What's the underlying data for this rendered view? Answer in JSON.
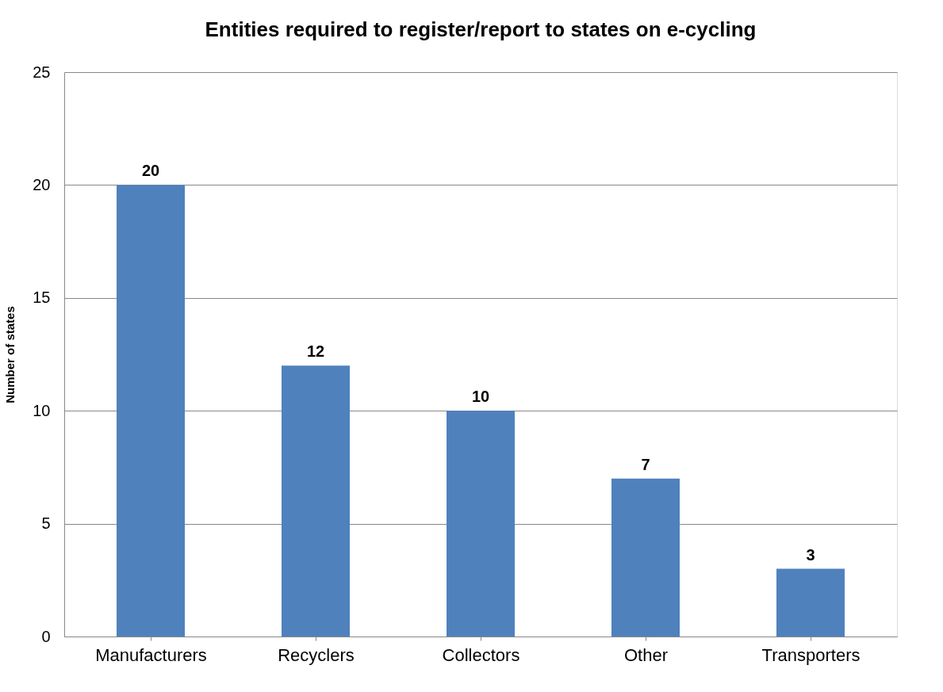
{
  "chart_data": {
    "type": "bar",
    "title": "Entities required to register/report to states on e-cycling",
    "ylabel": "Number of states",
    "categories": [
      "Manufacturers",
      "Recyclers",
      "Collectors",
      "Other",
      "Transporters"
    ],
    "values": [
      20,
      12,
      10,
      7,
      3
    ],
    "color": "#4f81bd",
    "ylim": [
      0,
      25
    ],
    "yticks": [
      0,
      5,
      10,
      15,
      20,
      25
    ],
    "grid": "y",
    "data_labels": true
  }
}
